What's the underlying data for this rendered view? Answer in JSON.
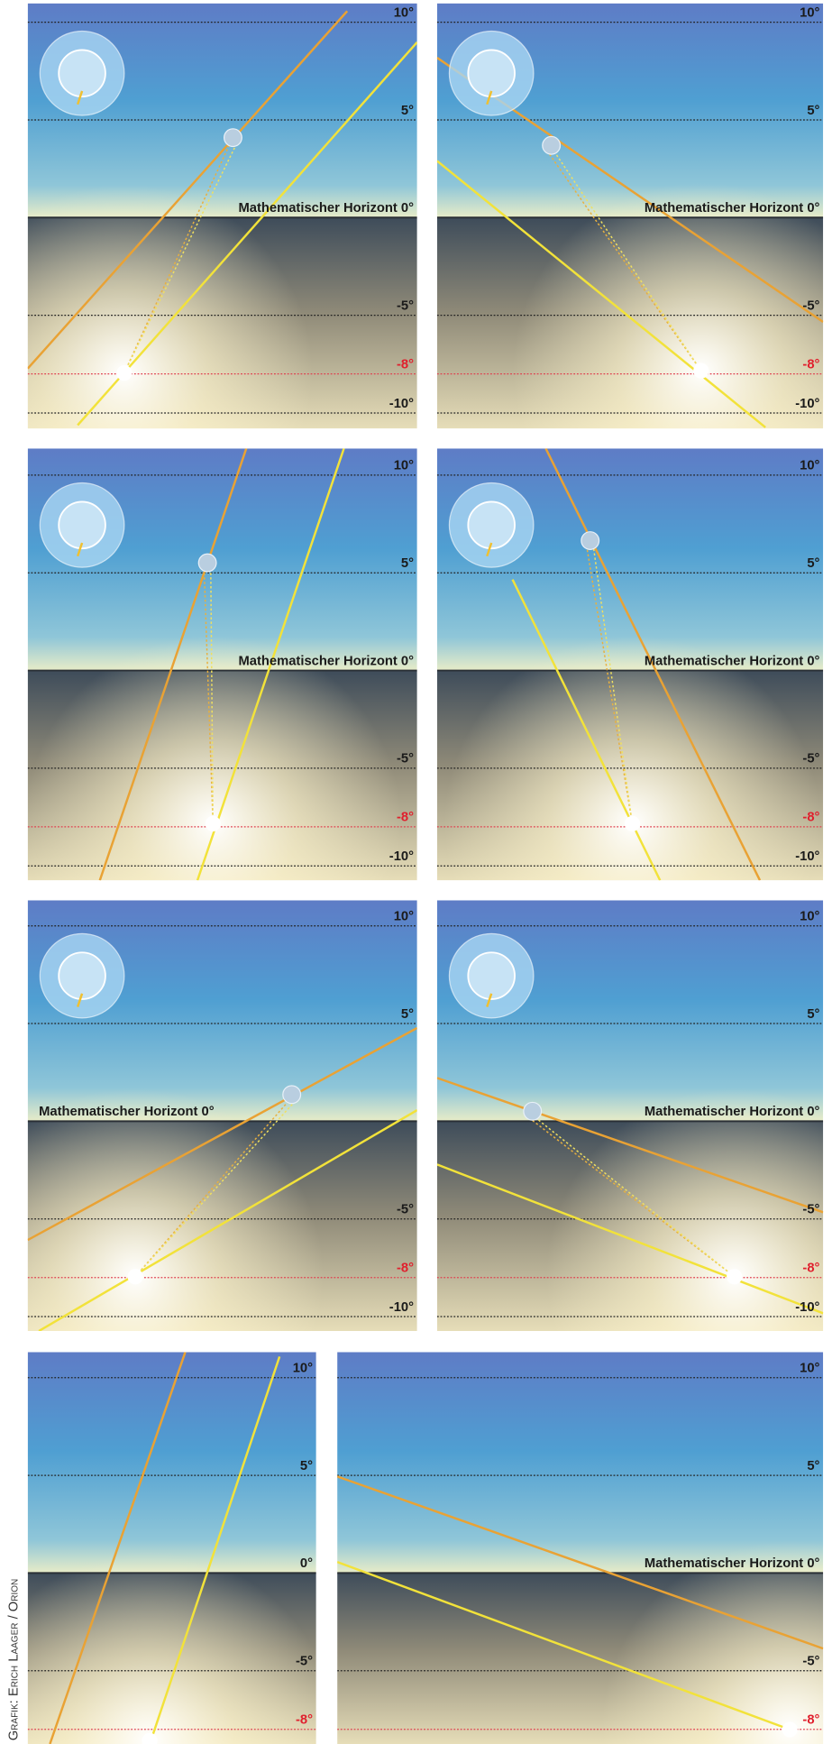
{
  "panels": [
    {
      "labels": [
        "10°",
        "5°",
        "Mathematischer Horizont 0°",
        "-5°",
        "-8°",
        "-10°"
      ]
    },
    {
      "labels": [
        "10°",
        "5°",
        "Mathematischer Horizont 0°",
        "-5°",
        "-8°",
        "-10°"
      ]
    },
    {
      "labels": [
        "10°",
        "5°",
        "Mathematischer Horizont 0°",
        "-5°",
        "-8°",
        "-10°"
      ]
    },
    {
      "labels": [
        "10°",
        "5°",
        "Mathematischer Horizont 0°",
        "-5°",
        "-8°",
        "-10°"
      ]
    },
    {
      "labels": [
        "10°",
        "5°",
        "Mathematischer Horizont 0°",
        "-5°",
        "-8°",
        "-10°"
      ]
    },
    {
      "labels": [
        "10°",
        "5°",
        "Mathematischer Horizont 0°",
        "-5°",
        "-8°",
        "-10°"
      ]
    },
    {
      "labels": [
        "10°",
        "5°",
        "0°",
        "-5°",
        "-8°"
      ]
    },
    {
      "labels": [
        "10°",
        "5°",
        "Mathematischer Horizont 0°",
        "-5°",
        "-8°"
      ]
    }
  ],
  "credit": "Grafik: Erich Laager / Orion"
}
